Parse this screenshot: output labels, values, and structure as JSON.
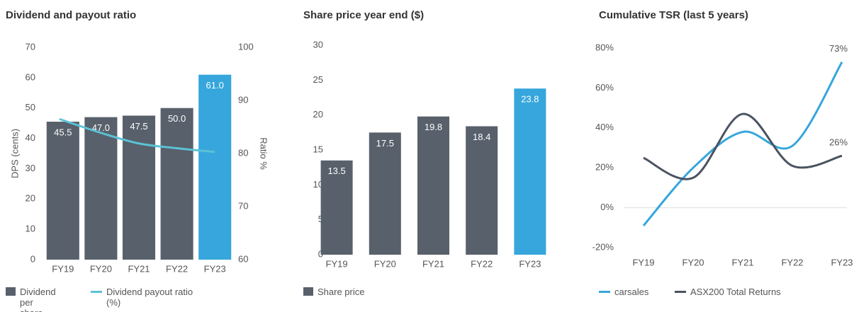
{
  "chart_data": [
    {
      "type": "bar_line",
      "title": "Dividend and payout ratio",
      "ylabel": "DPS (cents)",
      "y2label": "Ratio %",
      "categories": [
        "FY19",
        "FY20",
        "FY21",
        "FY22",
        "FY23"
      ],
      "series": [
        {
          "name": "Dividend per share",
          "type": "bar",
          "color": "#58606b",
          "colors": [
            "#58606b",
            "#58606b",
            "#58606b",
            "#58606b",
            "#36a6dc"
          ],
          "values": [
            45.5,
            47,
            47.5,
            50,
            61
          ],
          "value_labels": [
            "45.5",
            "47.0",
            "47.5",
            "50.0",
            "61.0"
          ]
        },
        {
          "name": "Dividend payout ratio (%)",
          "type": "line",
          "axis": "y2",
          "color": "#5bc2d6",
          "values": [
            86.5,
            83.9,
            81.9,
            81,
            80.3
          ]
        }
      ],
      "ylim": [
        0,
        70
      ],
      "yticks": [
        0,
        10,
        20,
        30,
        40,
        50,
        60,
        70
      ],
      "y2lim": [
        60,
        100
      ],
      "y2ticks": [
        60,
        70,
        80,
        90,
        100
      ]
    },
    {
      "type": "bar",
      "title": "Share price year end ($)",
      "categories": [
        "FY19",
        "FY20",
        "FY21",
        "FY22",
        "FY23"
      ],
      "series": [
        {
          "name": "Share price",
          "type": "bar",
          "color": "#58606b",
          "colors": [
            "#58606b",
            "#58606b",
            "#58606b",
            "#58606b",
            "#36a6dc"
          ],
          "values": [
            13.5,
            17.5,
            19.8,
            18.4,
            23.8
          ]
        }
      ],
      "ylim": [
        0,
        30
      ],
      "yticks": [
        0,
        5,
        10,
        15,
        20,
        25,
        30
      ]
    },
    {
      "type": "line",
      "title": "Cumulative TSR (last 5 years)",
      "categories": [
        "FY19",
        "FY20",
        "FY21",
        "FY22",
        "FY23"
      ],
      "series": [
        {
          "name": "carsales",
          "color": "#36a6dc",
          "values": [
            -9,
            20,
            38,
            31,
            73
          ],
          "value_labels": [
            null,
            null,
            null,
            null,
            "73%"
          ]
        },
        {
          "name": "ASX200 Total Returns",
          "color": "#4a5360",
          "values": [
            25,
            15,
            47,
            21,
            26
          ],
          "value_labels": [
            null,
            null,
            null,
            null,
            "26%"
          ]
        }
      ],
      "ylim": [
        -20,
        80
      ],
      "yticks": [
        {
          "value": -20,
          "label": "-20%"
        },
        {
          "value": 0,
          "label": "0%"
        },
        {
          "value": 20,
          "label": "20%"
        },
        {
          "value": 40,
          "label": "40%"
        },
        {
          "value": 60,
          "label": "60%"
        },
        {
          "value": 80,
          "label": "80%"
        }
      ],
      "zero_line": true
    }
  ]
}
